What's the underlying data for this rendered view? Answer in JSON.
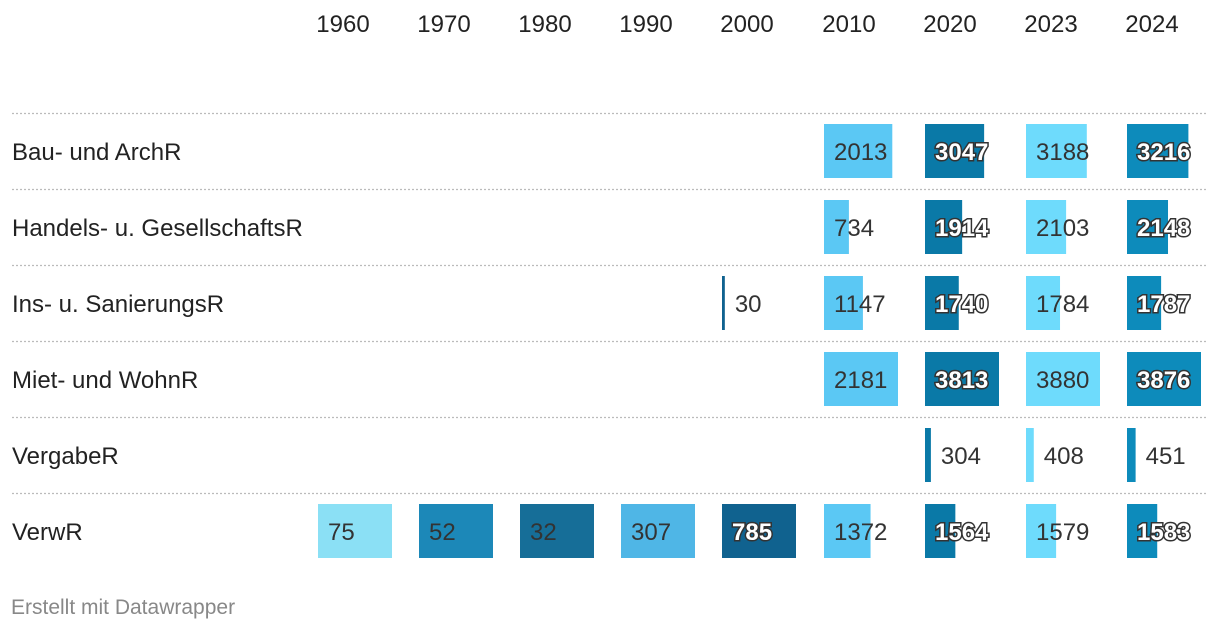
{
  "chart_data": {
    "type": "table",
    "title": "",
    "columns": [
      "1960",
      "1970",
      "1980",
      "1990",
      "2000",
      "2010",
      "2020",
      "2023",
      "2024"
    ],
    "rows": [
      {
        "label": "Bau- und ArchR",
        "values": [
          null,
          null,
          null,
          null,
          null,
          2013,
          3047,
          3188,
          3216
        ]
      },
      {
        "label": "Handels- u. GesellschaftsR",
        "values": [
          null,
          null,
          null,
          null,
          null,
          734,
          1914,
          2103,
          2148
        ]
      },
      {
        "label": "Ins- u. SanierungsR",
        "values": [
          null,
          null,
          null,
          null,
          30,
          1147,
          1740,
          1784,
          1787
        ]
      },
      {
        "label": "Miet- und WohnR",
        "values": [
          null,
          null,
          null,
          null,
          null,
          2181,
          3813,
          3880,
          3876
        ]
      },
      {
        "label": "VergabeR",
        "values": [
          null,
          null,
          null,
          null,
          null,
          null,
          304,
          408,
          451
        ]
      },
      {
        "label": "VerwR",
        "values": [
          75,
          52,
          32,
          307,
          785,
          1372,
          1564,
          1579,
          1583
        ]
      }
    ],
    "column_max": [
      75,
      52,
      32,
      307,
      785,
      2181,
      3813,
      3880,
      3876
    ],
    "column_colors": [
      "#8be0f5",
      "#1c88b8",
      "#166e98",
      "#4fb6e6",
      "#10628f",
      "#5bc8f4",
      "#0a79a7",
      "#6edbfc",
      "#0d8bbb"
    ]
  },
  "footer": {
    "credit": "Erstellt mit Datawrapper"
  }
}
